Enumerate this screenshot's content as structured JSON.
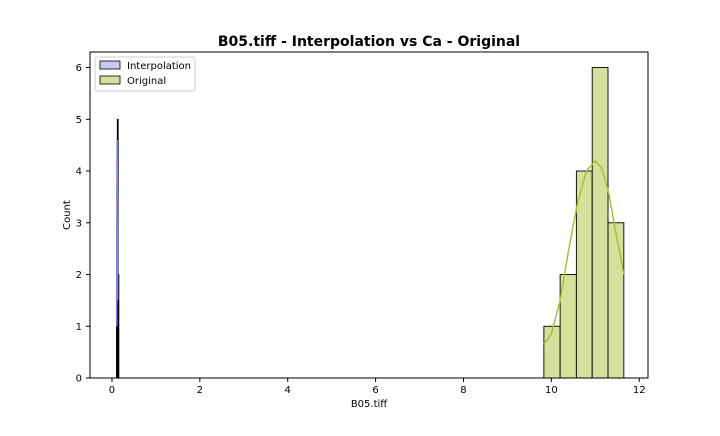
{
  "chart_data": {
    "type": "histogram",
    "title": "B05.tiff - Interpolation vs Ca - Original",
    "xlabel": "B05.tiff",
    "ylabel": "Count",
    "xlim": [
      -0.5,
      12.2
    ],
    "ylim": [
      0,
      6.3
    ],
    "xticks": [
      0,
      2,
      4,
      6,
      8,
      10,
      12
    ],
    "yticks": [
      0,
      1,
      2,
      3,
      4,
      5,
      6
    ],
    "legend": {
      "position": "top-left"
    },
    "series": [
      {
        "name": "Interpolation",
        "color": "#c8c8f0",
        "kde_color": "#8080e0",
        "bins": [
          {
            "x0": 0.1,
            "x1": 0.115,
            "count": 1.2
          },
          {
            "x0": 0.115,
            "x1": 0.13,
            "count": 4.6
          }
        ],
        "kde": [
          [
            0.106,
            1.0
          ],
          [
            0.112,
            3.5
          ],
          [
            0.118,
            4.6
          ],
          [
            0.124,
            3.5
          ],
          [
            0.13,
            1.5
          ]
        ]
      },
      {
        "name": "Original",
        "color": "#d4e09b",
        "kde_color": "#a6c33a",
        "bins": [
          {
            "x0": 9.83,
            "x1": 10.2,
            "count": 1
          },
          {
            "x0": 10.2,
            "x1": 10.57,
            "count": 2
          },
          {
            "x0": 10.57,
            "x1": 10.93,
            "count": 4
          },
          {
            "x0": 10.93,
            "x1": 11.29,
            "count": 6
          },
          {
            "x0": 11.29,
            "x1": 11.65,
            "count": 3
          }
        ],
        "kde": [
          [
            9.83,
            0.65
          ],
          [
            10.0,
            0.85
          ],
          [
            10.2,
            1.5
          ],
          [
            10.4,
            2.5
          ],
          [
            10.6,
            3.4
          ],
          [
            10.8,
            4.0
          ],
          [
            11.0,
            4.2
          ],
          [
            11.15,
            4.05
          ],
          [
            11.3,
            3.6
          ],
          [
            11.45,
            2.9
          ],
          [
            11.65,
            2.0
          ]
        ]
      }
    ],
    "outline_bars": [
      {
        "x0": 0.12,
        "x1": 0.135,
        "count": 5
      },
      {
        "x0": 0.135,
        "x1": 0.15,
        "count": 2
      },
      {
        "x0": 0.105,
        "x1": 0.12,
        "count": 1
      }
    ]
  }
}
